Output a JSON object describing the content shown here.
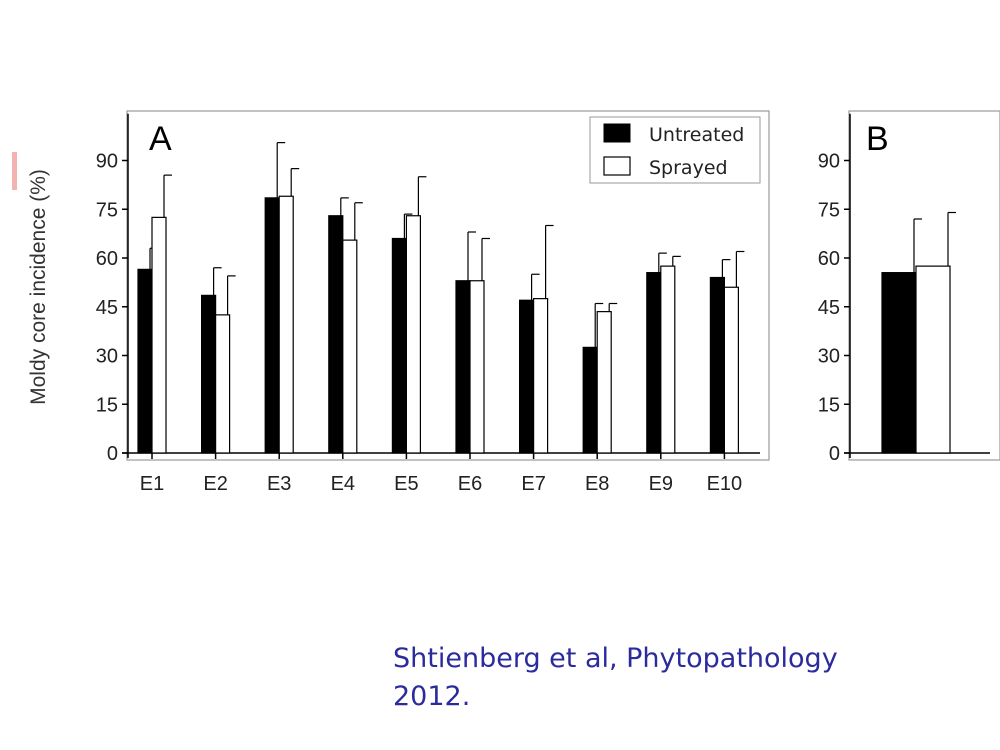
{
  "ylabel": "Moldy core incidence (%)",
  "citation": {
    "line1": "Shtienberg et al, Phytopathology",
    "line2": "2012."
  },
  "colors": {
    "untreated": "#000000",
    "sprayed": "#ffffff",
    "axis": "#000000",
    "frame": "#9a9a9a",
    "citation": "#2b2b9e"
  },
  "chart_data": [
    {
      "type": "bar",
      "panel_label": "A",
      "ylabel": "Moldy core incidence (%)",
      "ylim": [
        0,
        105
      ],
      "yticks": [
        0,
        15,
        30,
        45,
        60,
        75,
        90
      ],
      "categories": [
        "E1",
        "E2",
        "E3",
        "E4",
        "E5",
        "E6",
        "E7",
        "E8",
        "E9",
        "E10"
      ],
      "series": [
        {
          "name": "Untreated",
          "values": [
            56.5,
            48.5,
            78.5,
            73,
            66,
            53,
            47,
            32.5,
            55.5,
            54
          ],
          "errors": [
            6.5,
            8.5,
            17,
            5.5,
            7.5,
            15,
            8,
            13.5,
            6,
            5.5
          ]
        },
        {
          "name": "Sprayed",
          "values": [
            72.5,
            42.5,
            79,
            65.5,
            73,
            53,
            47.5,
            43.5,
            57.5,
            51
          ],
          "errors": [
            13,
            12,
            8.5,
            11.5,
            12,
            13,
            22.5,
            2.5,
            3,
            11
          ]
        }
      ],
      "legend": {
        "position": "top-right",
        "entries": [
          "Untreated",
          "Sprayed"
        ]
      },
      "grid": false
    },
    {
      "type": "bar",
      "panel_label": "B",
      "ylim": [
        0,
        105
      ],
      "yticks": [
        0,
        15,
        30,
        45,
        60,
        75,
        90
      ],
      "categories": [
        ""
      ],
      "series": [
        {
          "name": "Untreated",
          "values": [
            55.5
          ],
          "errors": [
            16.5
          ]
        },
        {
          "name": "Sprayed",
          "values": [
            57.5
          ],
          "errors": [
            16.5
          ]
        }
      ],
      "grid": false
    }
  ]
}
